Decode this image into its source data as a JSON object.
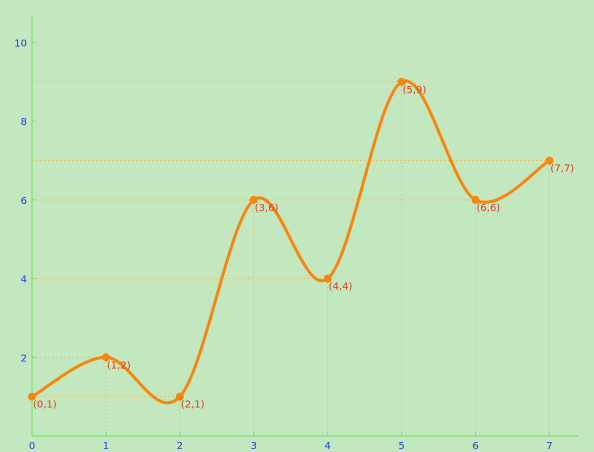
{
  "chart_data": {
    "type": "line",
    "title": "",
    "xlabel": "",
    "ylabel": "",
    "smooth": true,
    "x": [
      0,
      1,
      2,
      3,
      4,
      5,
      6,
      7
    ],
    "series": [
      {
        "values": [
          1,
          2,
          1,
          6,
          4,
          9,
          6,
          7
        ]
      }
    ],
    "point_labels": [
      "(0,1)",
      "(1,2)",
      "(2,1)",
      "(3,6)",
      "(4,4)",
      "(5,9)",
      "(6,6)",
      "(7,7)"
    ],
    "x_ticks": [
      "0",
      "1",
      "2",
      "3",
      "4",
      "5",
      "6",
      "7"
    ],
    "y_ticks": [
      "2",
      "4",
      "6",
      "8",
      "10"
    ],
    "xlim": [
      0,
      7.4
    ],
    "ylim": [
      0,
      10.7
    ],
    "grid": false,
    "guide_lines": true,
    "colors": {
      "background": "#c3e8c0",
      "line": "#f7860f",
      "axis": "#7fe070",
      "tick_label": "#1a3fd6",
      "data_label": "#e03a1a",
      "guide": "#f0b040"
    }
  }
}
